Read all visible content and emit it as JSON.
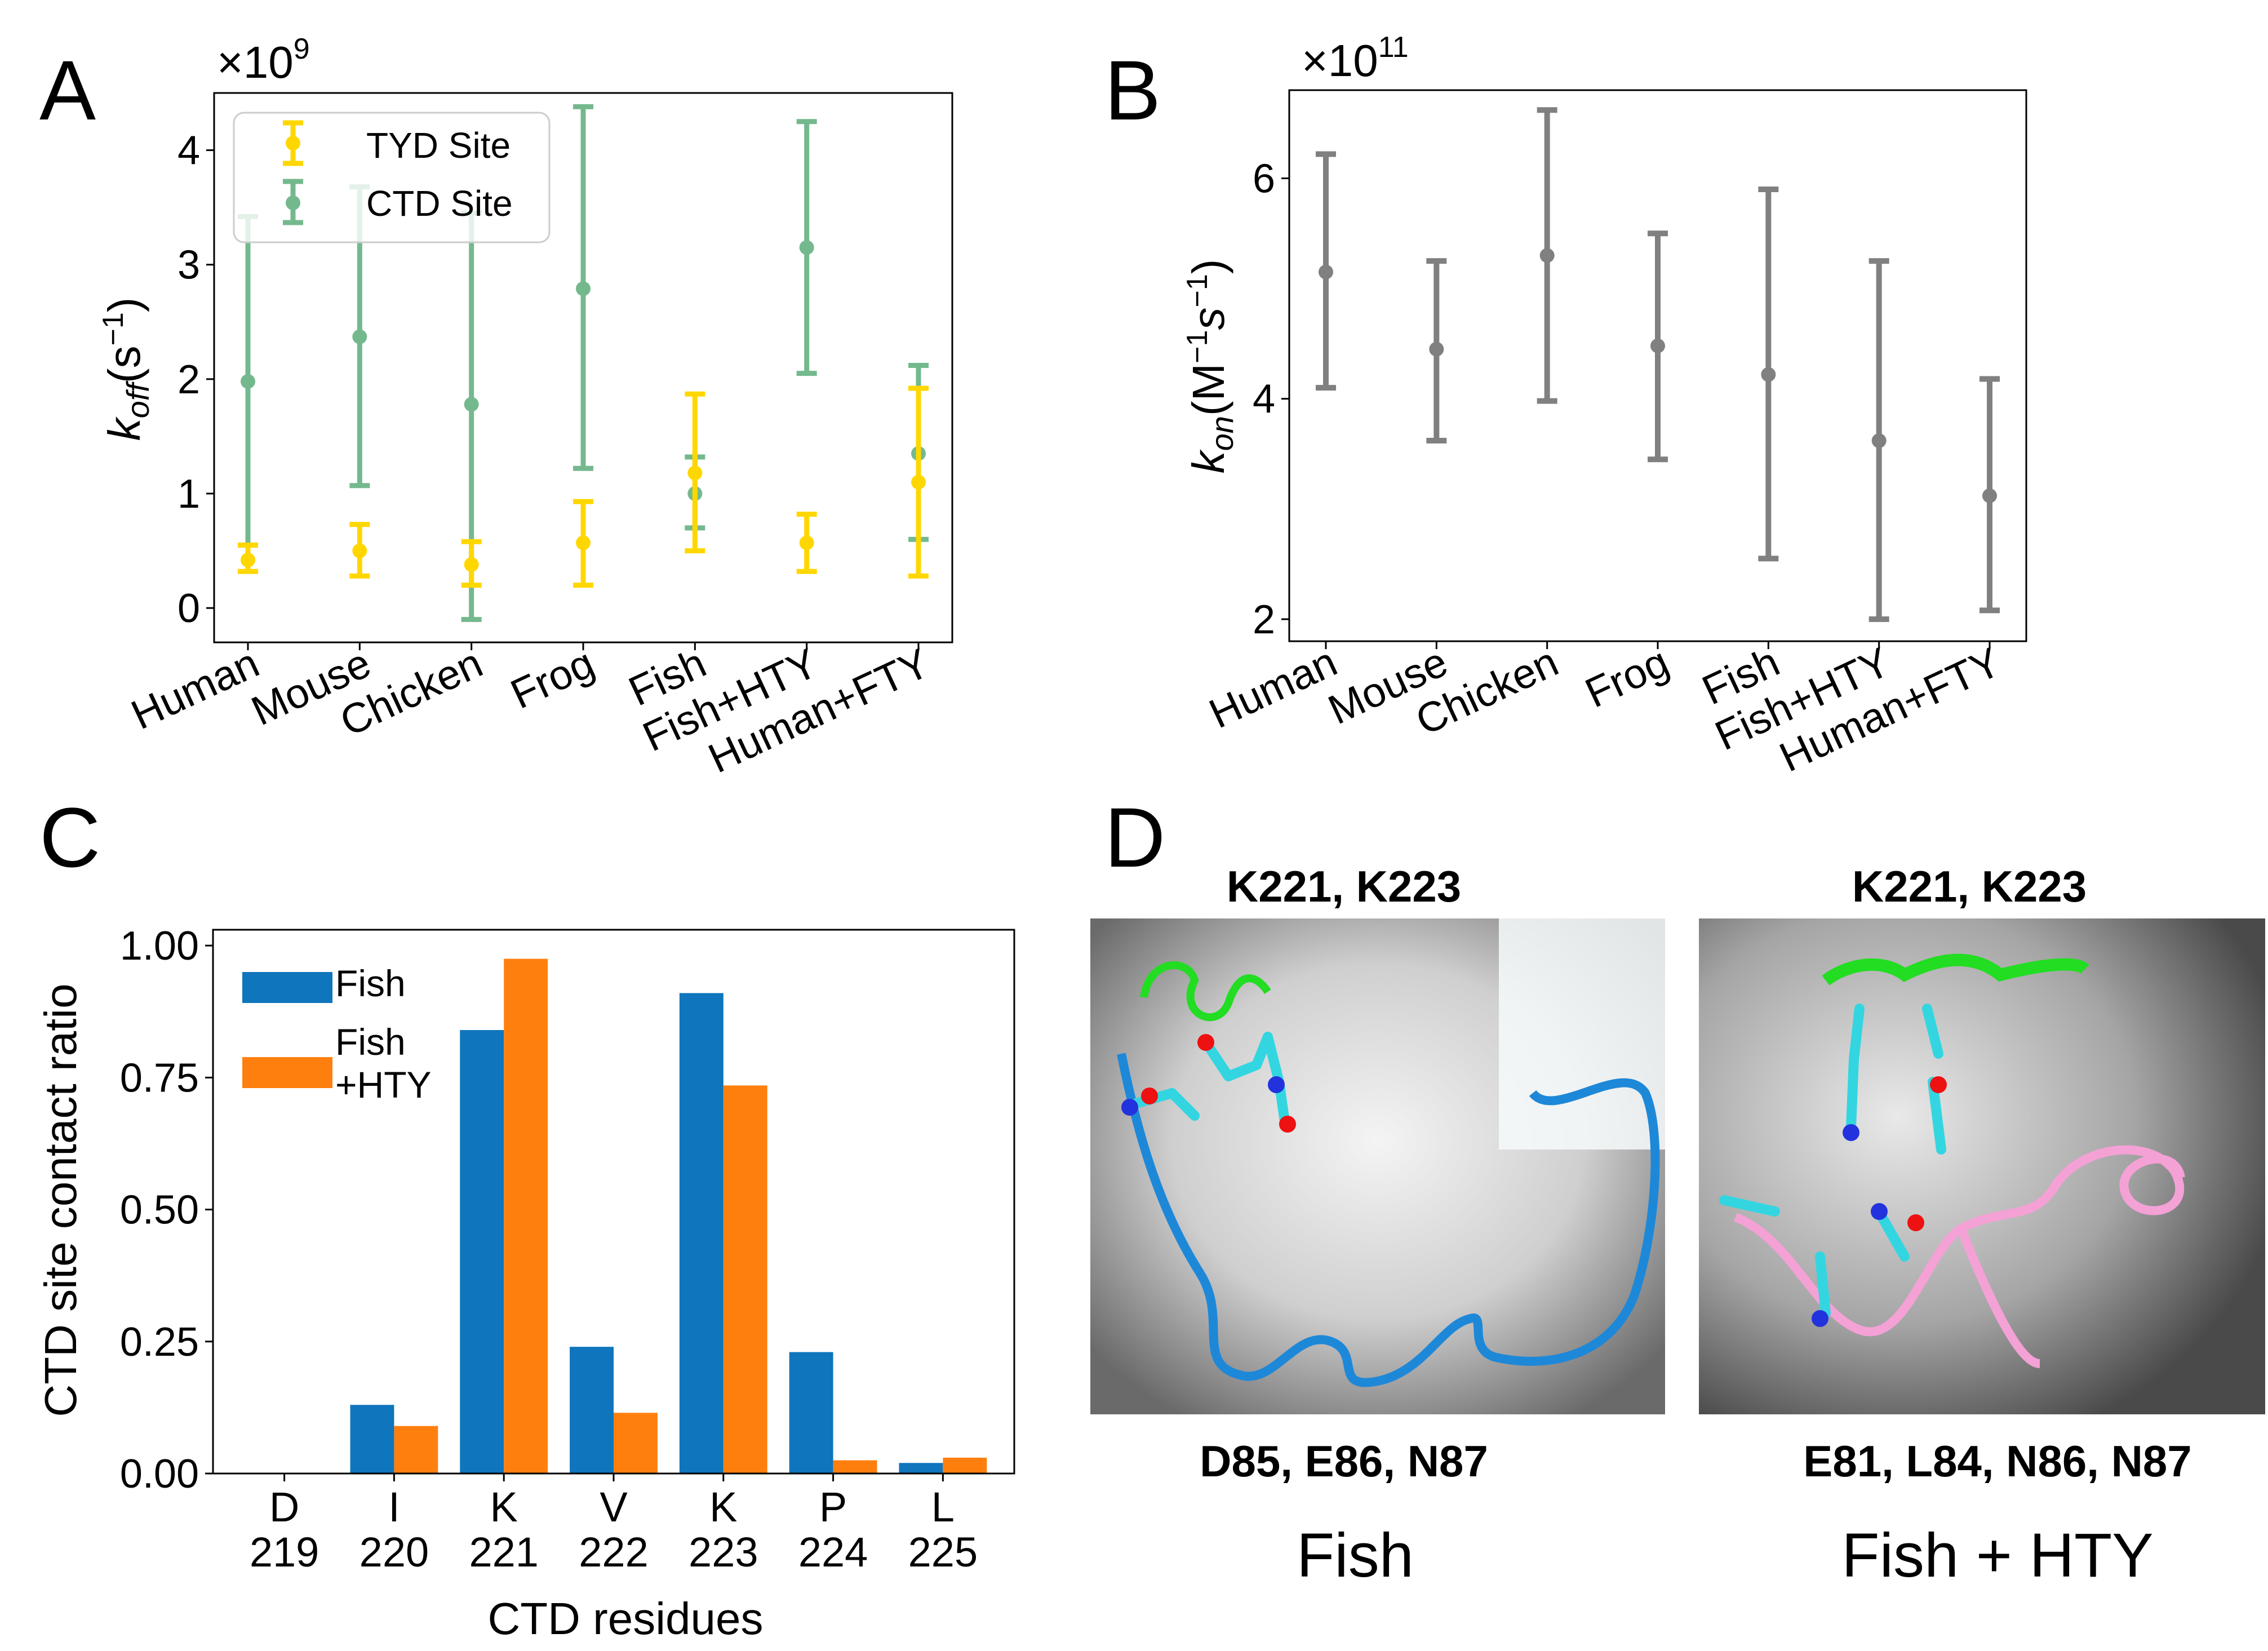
{
  "panels": {
    "A": {
      "label": "A",
      "multiplier": "×10",
      "exponent": "9",
      "ylabel_main": "k",
      "ylabel_sub": "off",
      "ylabel_open": "(s",
      "ylabel_sup": "−1",
      "ylabel_close": ")"
    },
    "B": {
      "label": "B",
      "multiplier": "×10",
      "exponent": "11",
      "ylabel_main": "k",
      "ylabel_sub": "on",
      "ylabel_open": "(M",
      "ylabel_sup1": "−1",
      "ylabel_mid": "s",
      "ylabel_sup2": "−1",
      "ylabel_close": ")"
    },
    "C": {
      "label": "C"
    },
    "D": {
      "label": "D",
      "left": {
        "top_caption": "K221, K223",
        "bottom_caption": "D85, E86, N87",
        "name": "Fish"
      },
      "right": {
        "top_caption": "K221, K223",
        "bottom_caption": "E81, L84, N86, N87",
        "name": "Fish + HTY"
      }
    }
  },
  "colors": {
    "tyd": "#FFD700",
    "ctd": "#74B98E",
    "gray": "#808080",
    "fish": "#0F75BC",
    "fish_hty": "#FF7F0E",
    "caption_green": "#22B14C",
    "caption_blue": "#1F78D0",
    "caption_pink": "#F075D8"
  },
  "chart_data": [
    {
      "type": "scatter",
      "categories": [
        "Human",
        "Mouse",
        "Chicken",
        "Frog",
        "Fish",
        "Fish+HTY",
        "Human+FTY"
      ],
      "ylim": [
        -0.3,
        4.5
      ],
      "yticks": [
        0,
        1,
        2,
        3,
        4
      ],
      "legend_position": "top-left",
      "grid": false,
      "series": [
        {
          "name": "TYD Site",
          "values": [
            0.42,
            0.5,
            0.38,
            0.57,
            1.18,
            0.57,
            1.1
          ],
          "err_low": [
            0.32,
            0.28,
            0.2,
            0.2,
            0.5,
            0.32,
            0.28
          ],
          "err_high": [
            0.55,
            0.73,
            0.58,
            0.93,
            1.87,
            0.82,
            1.92
          ]
        },
        {
          "name": "CTD Site",
          "values": [
            1.98,
            2.37,
            1.78,
            2.79,
            1.0,
            3.15,
            1.35
          ],
          "err_low": [
            0.55,
            1.07,
            -0.1,
            1.22,
            0.7,
            2.05,
            0.6
          ],
          "err_high": [
            3.42,
            3.68,
            3.45,
            4.38,
            1.32,
            4.25,
            2.12
          ]
        }
      ]
    },
    {
      "type": "scatter",
      "categories": [
        "Human",
        "Mouse",
        "Chicken",
        "Frog",
        "Fish",
        "Fish+HTY",
        "Human+FTY"
      ],
      "ylim": [
        1.8,
        6.8
      ],
      "yticks": [
        2,
        4,
        6
      ],
      "grid": false,
      "series": [
        {
          "values": [
            5.15,
            4.45,
            5.3,
            4.48,
            4.22,
            3.62,
            3.12
          ],
          "err_low": [
            4.1,
            3.62,
            3.98,
            3.45,
            2.55,
            2.0,
            2.08
          ],
          "err_high": [
            6.22,
            5.25,
            6.62,
            5.5,
            5.9,
            5.25,
            4.18
          ]
        }
      ]
    },
    {
      "type": "bar",
      "xlabel": "CTD residues",
      "ylabel": "CTD site contact ratio",
      "categories": [
        [
          "D",
          "219"
        ],
        [
          "I",
          "220"
        ],
        [
          "K",
          "221"
        ],
        [
          "V",
          "222"
        ],
        [
          "K",
          "223"
        ],
        [
          "P",
          "224"
        ],
        [
          "L",
          "225"
        ]
      ],
      "ylim": [
        0,
        1.03
      ],
      "yticks": [
        "0.00",
        "0.25",
        "0.50",
        "0.75",
        "1.00"
      ],
      "legend_position": "top-left",
      "series": [
        {
          "name": "Fish",
          "values": [
            0.0,
            0.13,
            0.84,
            0.24,
            0.91,
            0.23,
            0.02
          ]
        },
        {
          "name": "Fish\n+HTY",
          "values": [
            0.0,
            0.09,
            0.975,
            0.115,
            0.735,
            0.025,
            0.03
          ]
        }
      ]
    }
  ]
}
